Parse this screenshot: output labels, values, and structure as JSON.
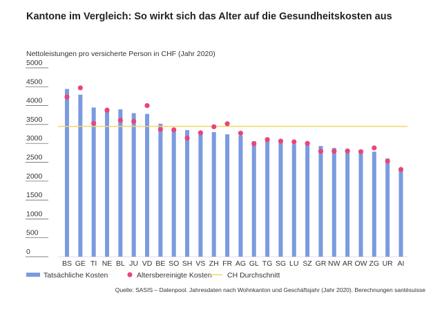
{
  "header": {
    "title": "Kantone im Vergleich: So wirkt sich das Alter auf die Gesundheitskosten aus",
    "subtitle": "Nettoleistungen pro versicherte Person in CHF (Jahr 2020)"
  },
  "footer": {
    "source": "Quelle: SASIS – Datenpool. Jahresdaten nach Wohnkanton und Geschäftsjahr (Jahr 2020). Berechnungen santésuisse"
  },
  "colors": {
    "bars": "#7b9be0",
    "dots": "#e8457a",
    "average": "#f2d566"
  },
  "chart_data": {
    "type": "bar",
    "title": "Kantone im Vergleich: So wirkt sich das Alter auf die Gesundheitskosten aus",
    "ylabel": "Nettoleistungen pro versicherte Person in CHF (Jahr 2020)",
    "ylim": [
      0,
      5000
    ],
    "yticks": [
      0,
      500,
      1000,
      1500,
      2000,
      2500,
      3000,
      3500,
      4000,
      4500,
      5000
    ],
    "grid": false,
    "legend_position": "bottom",
    "categories": [
      "BS",
      "GE",
      "TI",
      "NE",
      "BL",
      "JU",
      "VD",
      "BE",
      "SO",
      "SH",
      "VS",
      "ZH",
      "FR",
      "AG",
      "GL",
      "TG",
      "SG",
      "LU",
      "SZ",
      "GR",
      "NW",
      "AR",
      "OW",
      "ZG",
      "UR",
      "AI"
    ],
    "series": [
      {
        "name": "Tatsächliche Kosten",
        "kind": "bar",
        "values": [
          4440,
          4290,
          3950,
          3880,
          3900,
          3800,
          3780,
          3520,
          3360,
          3350,
          3290,
          3300,
          3240,
          3210,
          3060,
          3060,
          3040,
          2980,
          2980,
          2930,
          2880,
          2840,
          2780,
          2780,
          2600,
          2310
        ]
      },
      {
        "name": "Altersbereinigte Kosten",
        "kind": "dot",
        "values": [
          4230,
          4470,
          3530,
          3880,
          3610,
          3580,
          4000,
          3370,
          3360,
          3140,
          3280,
          3440,
          3520,
          3270,
          2990,
          3100,
          3060,
          3040,
          3000,
          2790,
          2790,
          2800,
          2780,
          2880,
          2530,
          2310
        ]
      },
      {
        "name": "CH Durchschnitt",
        "kind": "line",
        "value": 3450
      }
    ]
  }
}
